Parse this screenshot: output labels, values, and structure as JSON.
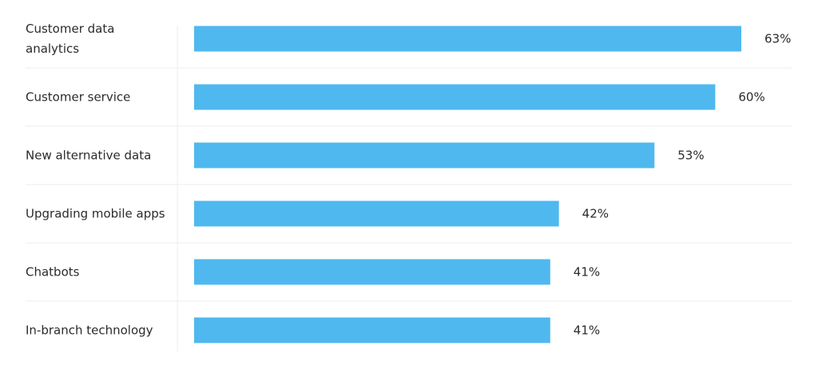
{
  "chart_data": {
    "type": "bar",
    "orientation": "horizontal",
    "categories": [
      "Customer data analytics",
      "Customer service",
      "New alternative data",
      "Upgrading mobile apps",
      "Chatbots",
      "In-branch technology"
    ],
    "values": [
      63,
      60,
      53,
      42,
      41,
      41
    ],
    "value_labels": [
      "63%",
      "60%",
      "53%",
      "42%",
      "41%",
      "41%"
    ],
    "unit": "%",
    "xlim": [
      0,
      63
    ],
    "title": "",
    "xlabel": "",
    "ylabel": "",
    "grid": false,
    "legend": "none"
  },
  "colors": {
    "bar": "#4fb8ef",
    "text": "#2b2b2b",
    "separator": "#eeeeee"
  }
}
